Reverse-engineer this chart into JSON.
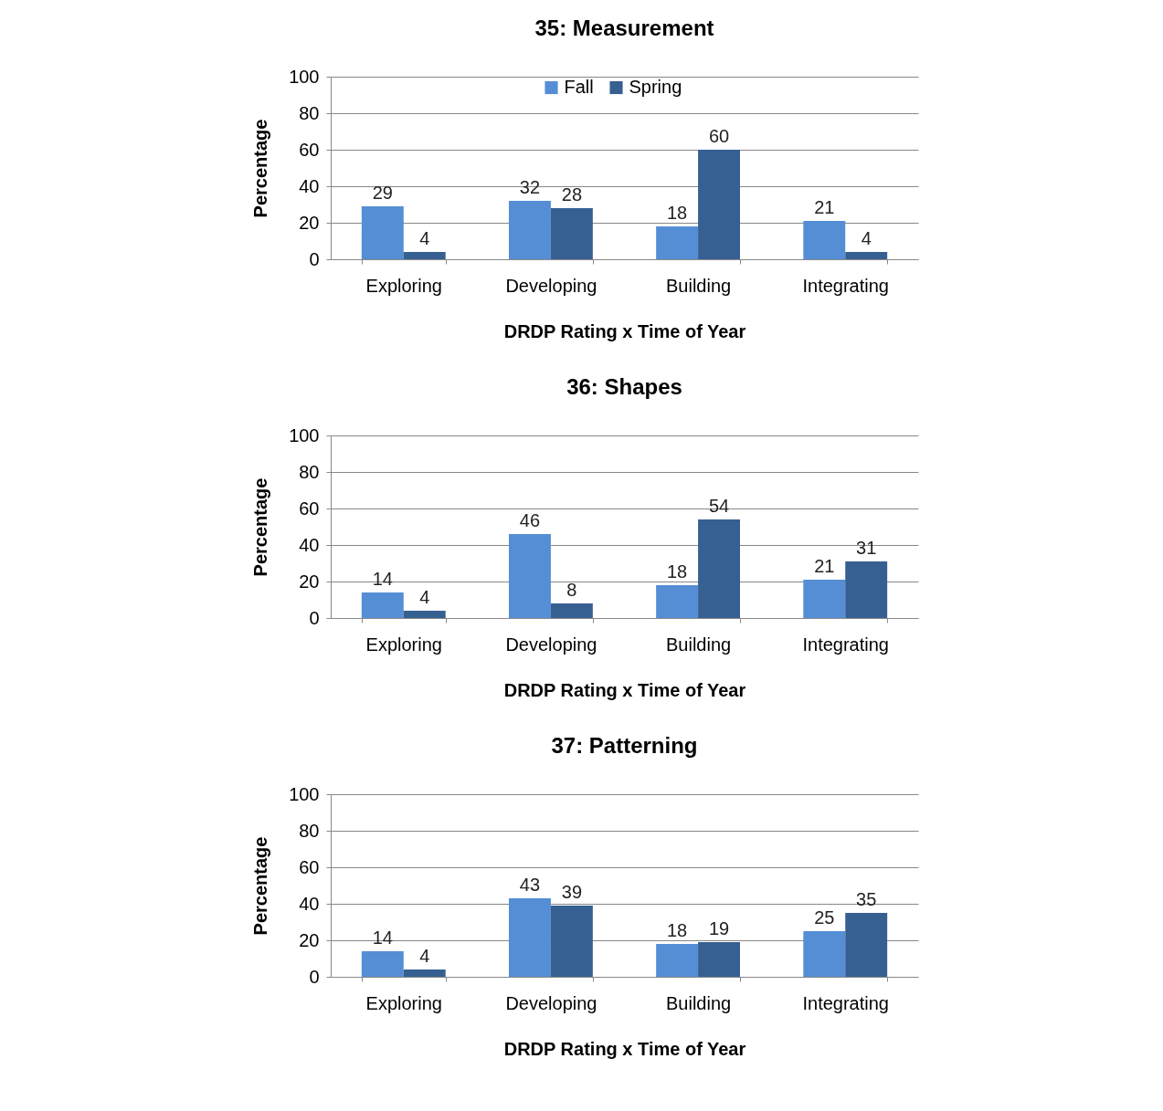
{
  "chart_data": [
    {
      "type": "bar",
      "title": "35: Measurement",
      "xlabel": "DRDP Rating x Time of Year",
      "ylabel": "Percentage",
      "categories": [
        "Exploring",
        "Developing",
        "Building",
        "Integrating"
      ],
      "series": [
        {
          "name": "Fall",
          "color": "#558ed5",
          "values": [
            29,
            32,
            18,
            21
          ]
        },
        {
          "name": "Spring",
          "color": "#376092",
          "values": [
            4,
            28,
            60,
            4
          ]
        }
      ],
      "ylim": [
        0,
        100
      ],
      "yticks": [
        0,
        20,
        40,
        60,
        80,
        100
      ],
      "grid": "y",
      "legend": "top",
      "data_labels": true
    },
    {
      "type": "bar",
      "title": "36: Shapes",
      "xlabel": "DRDP Rating x Time of Year",
      "ylabel": "Percentage",
      "categories": [
        "Exploring",
        "Developing",
        "Building",
        "Integrating"
      ],
      "series": [
        {
          "name": "Fall",
          "color": "#558ed5",
          "values": [
            14,
            46,
            18,
            21
          ]
        },
        {
          "name": "Spring",
          "color": "#376092",
          "values": [
            4,
            8,
            54,
            31
          ]
        }
      ],
      "ylim": [
        0,
        100
      ],
      "yticks": [
        0,
        20,
        40,
        60,
        80,
        100
      ],
      "grid": "y",
      "legend": "top",
      "data_labels": true
    },
    {
      "type": "bar",
      "title": "37: Patterning",
      "xlabel": "DRDP Rating x Time of Year",
      "ylabel": "Percentage",
      "categories": [
        "Exploring",
        "Developing",
        "Building",
        "Integrating"
      ],
      "series": [
        {
          "name": "Fall",
          "color": "#558ed5",
          "values": [
            14,
            43,
            18,
            25
          ]
        },
        {
          "name": "Spring",
          "color": "#376092",
          "values": [
            4,
            39,
            19,
            35
          ]
        }
      ],
      "ylim": [
        0,
        100
      ],
      "yticks": [
        0,
        20,
        40,
        60,
        80,
        100
      ],
      "grid": "y",
      "legend": "top",
      "data_labels": true
    }
  ]
}
